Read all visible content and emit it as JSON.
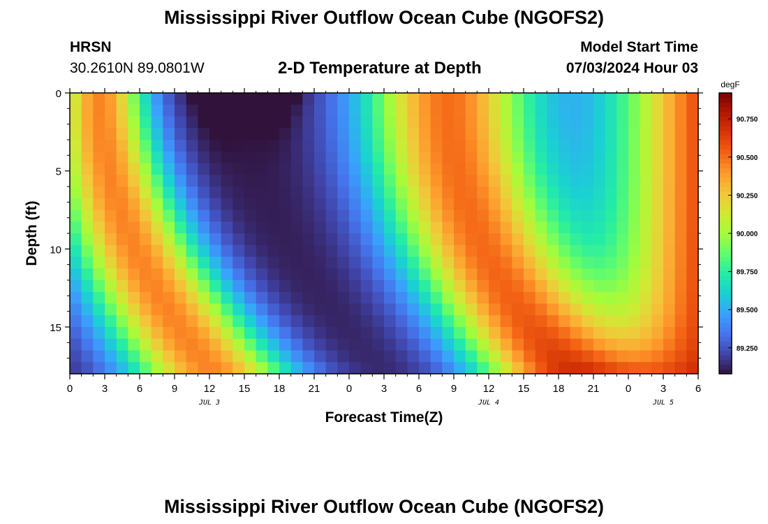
{
  "header": {
    "title": "Mississippi River Outflow Ocean Cube (NGOFS2)",
    "station": "HRSN",
    "coords": "30.2610N  89.0801W",
    "subtitle": "2-D Temperature at Depth",
    "model_label": "Model Start Time",
    "model_time": "07/03/2024 Hour 03"
  },
  "footer": {
    "title": "Mississippi River Outflow Ocean Cube (NGOFS2)"
  },
  "chart_data": {
    "type": "heatmap",
    "xlabel": "Forecast Time(Z)",
    "ylabel": "Depth (ft)",
    "xlim": [
      0,
      54
    ],
    "ylim": [
      0,
      18
    ],
    "x_ticks": [
      0,
      3,
      6,
      9,
      12,
      15,
      18,
      21,
      24,
      27,
      30,
      33,
      36,
      39,
      42,
      45,
      48,
      51,
      54
    ],
    "x_tick_labels": [
      "0",
      "3",
      "6",
      "9",
      "12",
      "15",
      "18",
      "21",
      "0",
      "3",
      "6",
      "9",
      "12",
      "15",
      "18",
      "21",
      "0",
      "3",
      "6"
    ],
    "y_ticks": [
      0,
      5,
      10,
      15
    ],
    "y_tick_labels": [
      "0",
      "5",
      "10",
      "15"
    ],
    "day_labels": [
      {
        "x": 12,
        "text": "JUL 3"
      },
      {
        "x": 36,
        "text": "JUL 4"
      },
      {
        "x": 51,
        "text": "JUL 5"
      }
    ],
    "colorbar": {
      "unit": "degF",
      "min": 89.08,
      "max": 90.92,
      "ticks": [
        89.25,
        89.5,
        89.75,
        90.0,
        90.25,
        90.5,
        90.75
      ],
      "tick_labels": [
        "89.250",
        "89.500",
        "89.750",
        "90.000",
        "90.250",
        "90.500",
        "90.750"
      ]
    },
    "colors": {
      "scale": [
        "#30123b",
        "#4145ab",
        "#4675ed",
        "#39a2fc",
        "#1bcfd4",
        "#24eca6",
        "#61fc6c",
        "#a4fc3b",
        "#d1e834",
        "#f3c63a",
        "#fe9b2d",
        "#f36315",
        "#d93806",
        "#b11901",
        "#7a0402"
      ]
    },
    "grid": false,
    "legend": "right"
  }
}
